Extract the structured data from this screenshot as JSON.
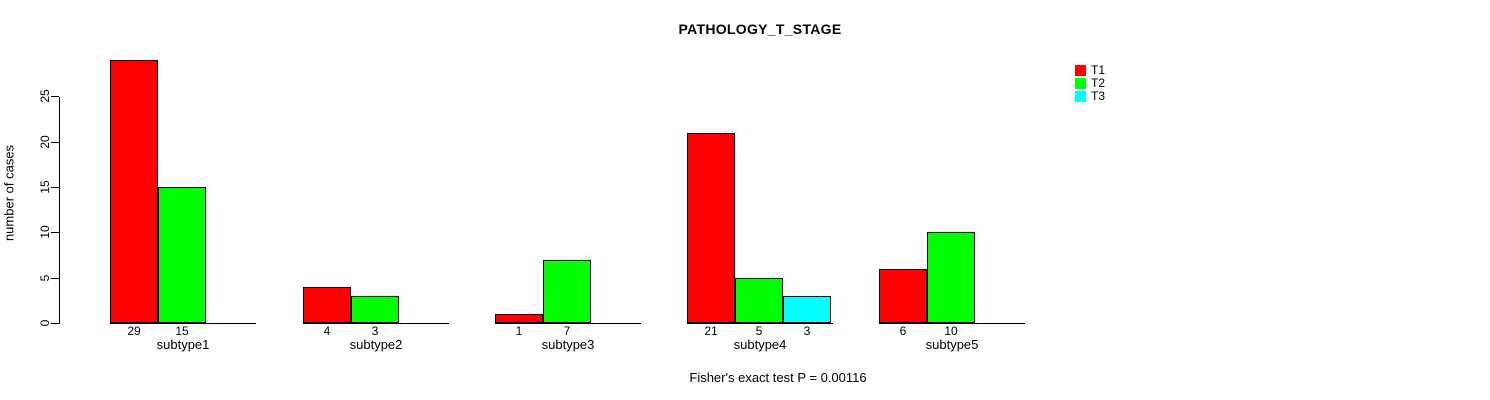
{
  "chart_data": {
    "type": "bar",
    "title": "PATHOLOGY_T_STAGE",
    "ylabel": "number of cases",
    "xlabel": "",
    "annotation": "Fisher's exact test P = 0.00116",
    "categories": [
      "subtype1",
      "subtype2",
      "subtype3",
      "subtype4",
      "subtype5"
    ],
    "series": [
      {
        "name": "T1",
        "color": "#ff0000",
        "values": [
          29,
          4,
          1,
          21,
          6
        ]
      },
      {
        "name": "T2",
        "color": "#00ff00",
        "values": [
          15,
          3,
          7,
          5,
          10
        ]
      },
      {
        "name": "T3",
        "color": "#00ffff",
        "values": [
          null,
          null,
          null,
          3,
          null
        ]
      }
    ],
    "yticks": [
      0,
      5,
      10,
      15,
      20,
      25
    ],
    "ylim": [
      0,
      29
    ],
    "bar_value_labels": true,
    "grid": false,
    "legend_position": "top-right",
    "axis_color": "#000000",
    "background_color": "#ffffff"
  }
}
